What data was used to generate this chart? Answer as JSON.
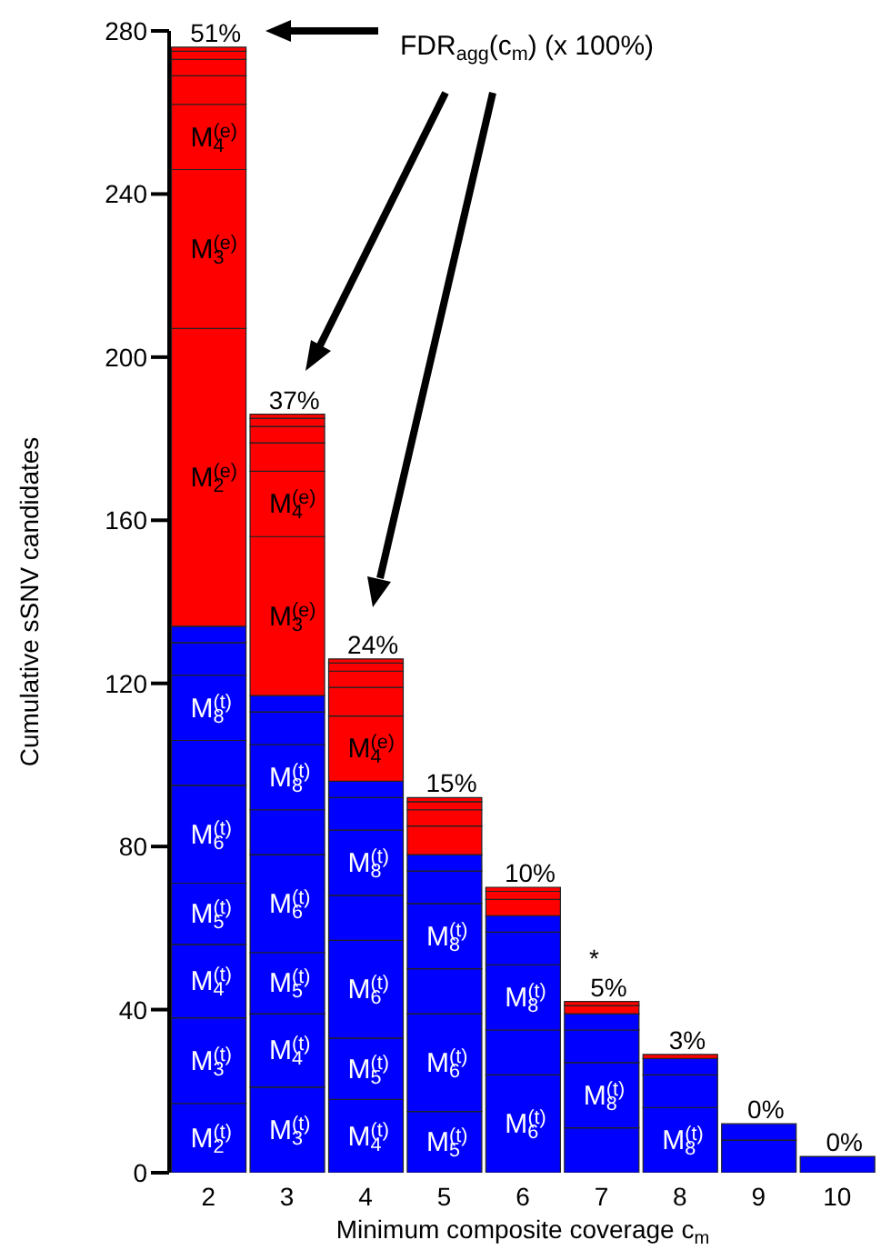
{
  "chart_data": {
    "type": "bar",
    "stacked": true,
    "xlabel": "Minimum composite coverage c$_{m}$",
    "ylabel": "Cumulative sSNV candidates",
    "categories": [
      "2",
      "3",
      "4",
      "5",
      "6",
      "7",
      "8",
      "9",
      "10"
    ],
    "series": [
      {
        "name": "M$_{2}$$^{(t)}$",
        "color": "#0000ff",
        "values": [
          17,
          null,
          null,
          null,
          null,
          null,
          null,
          null,
          null
        ]
      },
      {
        "name": "M$_{3}$$^{(t)}$",
        "color": "#0000ff",
        "values": [
          21,
          21,
          null,
          null,
          null,
          null,
          null,
          null,
          null
        ]
      },
      {
        "name": "M$_{4}$$^{(t)}$",
        "color": "#0000ff",
        "values": [
          18,
          18,
          18,
          null,
          null,
          null,
          null,
          null,
          null
        ]
      },
      {
        "name": "M$_{5}$$^{(t)}$",
        "color": "#0000ff",
        "values": [
          15,
          15,
          15,
          15,
          null,
          null,
          null,
          null,
          null
        ]
      },
      {
        "name": "M$_{6}$$^{(t)}$",
        "color": "#0000ff",
        "values": [
          24,
          24,
          24,
          24,
          24,
          null,
          null,
          null,
          null
        ]
      },
      {
        "color": "#0000ff",
        "values": [
          11,
          11,
          11,
          11,
          11,
          11,
          null,
          null,
          null
        ]
      },
      {
        "name": "M$_{8}$$^{(t)}$",
        "color": "#0000ff",
        "values": [
          16,
          16,
          16,
          16,
          16,
          16,
          16,
          null,
          null
        ]
      },
      {
        "color": "#0000ff",
        "values": [
          8,
          8,
          8,
          8,
          8,
          8,
          8,
          8,
          null
        ]
      },
      {
        "color": "#0000ff",
        "values": [
          4,
          4,
          4,
          4,
          4,
          4,
          4,
          4,
          4
        ]
      },
      {
        "name": "M$_{2}$$^{(e)}$",
        "color": "#ff0000",
        "values": [
          73,
          null,
          null,
          null,
          null,
          null,
          null,
          null,
          null
        ]
      },
      {
        "name": "M$_{3}$$^{(e)}$",
        "color": "#ff0000",
        "values": [
          39,
          39,
          null,
          null,
          null,
          null,
          null,
          null,
          null
        ]
      },
      {
        "name": "M$_{4}$$^{(e)}$",
        "color": "#ff0000",
        "values": [
          16,
          16,
          16,
          null,
          null,
          null,
          null,
          null,
          null
        ]
      },
      {
        "color": "#ff0000",
        "values": [
          7,
          7,
          7,
          7,
          null,
          null,
          null,
          null,
          null
        ]
      },
      {
        "color": "#ff0000",
        "values": [
          4,
          4,
          4,
          4,
          4,
          null,
          null,
          null,
          null
        ]
      },
      {
        "color": "#ff0000",
        "values": [
          2,
          2,
          2,
          2,
          2,
          2,
          null,
          null,
          null
        ]
      },
      {
        "color": "#ff0000",
        "values": [
          1,
          1,
          1,
          1,
          1,
          1,
          1,
          null,
          null
        ]
      }
    ],
    "ylim": [
      0,
      280
    ],
    "yticks": [
      0,
      40,
      80,
      120,
      160,
      200,
      240,
      280
    ],
    "grid": false,
    "legend": false,
    "annotations": [
      "FDR$_{agg}$(c$_{m}$) (x 100%)",
      "*",
      {
        "text": "51%",
        "x": "2",
        "y": 276
      },
      {
        "text": "37%",
        "x": "3",
        "y": 186
      },
      {
        "text": "24%",
        "x": "4",
        "y": 126
      },
      {
        "text": "15%",
        "x": "5",
        "y": 92
      },
      {
        "text": "10%",
        "x": "6",
        "y": 70
      },
      {
        "text": "5%",
        "x": "7",
        "y": 42
      },
      {
        "text": "3%",
        "x": "8",
        "y": 29
      },
      {
        "text": "0%",
        "x": "9",
        "y": 12
      },
      {
        "text": "0%",
        "x": "10",
        "y": 4
      }
    ]
  }
}
